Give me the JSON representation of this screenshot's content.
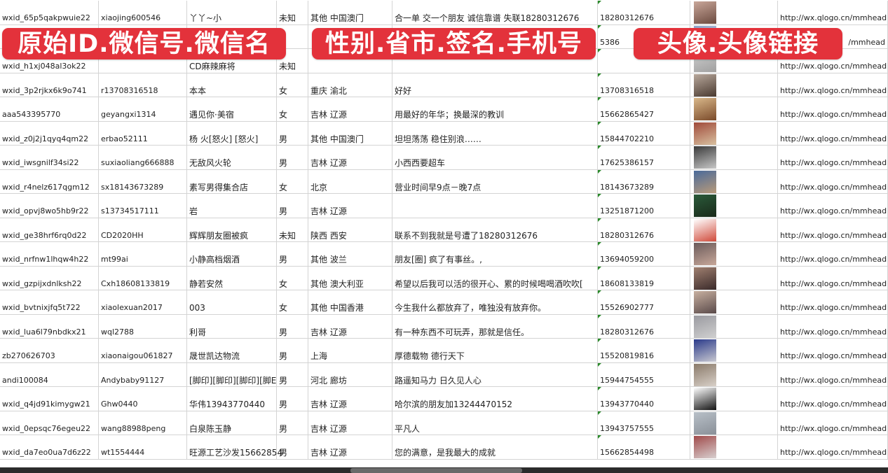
{
  "overlays": [
    "原始ID.微信号.微信名",
    "性别.省市.签名.手机号",
    "头像.头像链接"
  ],
  "colors": {
    "overlay": "#e3323b",
    "gridline": "#d4d4d4",
    "comment_marker": "#2a8a2a"
  },
  "rows": [
    [
      "wxid_65p5qakpwuie22",
      "xiaojing600546",
      "丫丫~小",
      "未知",
      "其他 中国澳门",
      "合一单 交一个朋友 诚信靠谱 失联18280312676",
      "18280312676",
      "http://wx.qlogo.cn/mmhead"
    ],
    [
      "",
      "",
      "",
      "",
      "",
      "",
      "5386",
      "/mmhead"
    ],
    [
      "wxid_h1xj048al3ok22",
      "",
      "CD麻辣麻将",
      "未知",
      "",
      "",
      "",
      "http://wx.qlogo.cn/mmhead"
    ],
    [
      "wxid_3p2rjkx6k9o741",
      "r13708316518",
      "本本",
      "女",
      "重庆 渝北",
      "好好",
      "13708316518",
      "http://wx.qlogo.cn/mmhead"
    ],
    [
      "aaa543395770",
      "geyangxi1314",
      "遇见你·美宿",
      "女",
      "吉林 辽源",
      "用最好的年华；换最深的教训",
      "15662865427",
      "http://wx.qlogo.cn/mmhead"
    ],
    [
      "wxid_z0j2j1qyq4qm22",
      "erbao52111",
      "杨 火[怒火] [怒火]",
      "男",
      "其他 中国澳门",
      "坦坦荡荡 稳住别浪……",
      "15844702210",
      "http://wx.qlogo.cn/mmhead"
    ],
    [
      "wxid_iwsgnilf34si22",
      "suxiaoliang666888",
      "无敌风火轮",
      "男",
      "吉林 辽源",
      "小西西要超车",
      "17625386157",
      "http://wx.qlogo.cn/mmhead"
    ],
    [
      "wxid_r4nelz617qgm12",
      "sx18143673289",
      "素写男得集合店",
      "女",
      "北京",
      "营业时间早9点－晚7点",
      "18143673289",
      "http://wx.qlogo.cn/mmhead"
    ],
    [
      "wxid_opvj8wo5hb9r22",
      "s13734517111",
      "岩",
      "男",
      "吉林 辽源",
      "",
      "13251871200",
      "http://wx.qlogo.cn/mmhead"
    ],
    [
      "wxid_ge38hrf6rq0d22",
      "CD2020HH",
      "辉辉朋友圈被疯",
      "未知",
      "陕西 西安",
      "联系不到我就是号遭了18280312676",
      "18280312676",
      "http://wx.qlogo.cn/mmhead"
    ],
    [
      "wxid_nrfnw1lhqw4h22",
      "mt99ai",
      "小静高档烟酒",
      "男",
      "其他 波兰",
      "朋友[圈] 疯了有事丝。,",
      "13694059200",
      "http://wx.qlogo.cn/mmhead"
    ],
    [
      "wxid_gzpijxdnlksh22",
      "Cxh18608133819",
      "静若安然",
      "女",
      "其他 澳大利亚",
      "希望以后我可以活的很开心、累的时候喝喝酒吹吹[",
      "18608133819",
      "http://wx.qlogo.cn/mmhead"
    ],
    [
      "wxid_bvtnixjfq5t722",
      "xiaolexuan2017",
      "003",
      "女",
      "其他 中国香港",
      "今生我什么都放弃了，唯独没有放弃你。",
      "15526902777",
      "http://wx.qlogo.cn/mmhead"
    ],
    [
      "wxid_lua6l79nbdkx21",
      "wql2788",
      "利哥",
      "男",
      "吉林 辽源",
      "有一种东西不可玩弄，那就是信任。",
      "18280312676",
      "http://wx.qlogo.cn/mmhead"
    ],
    [
      "zb270626703",
      "xiaonaigou061827",
      "晟世凯达物流",
      "男",
      "上海",
      "厚德载物 德行天下",
      "15520819816",
      "http://wx.qlogo.cn/mmhead"
    ],
    [
      "andi100084",
      "Andybaby91127",
      "[脚印][脚印][脚印][脚E",
      "男",
      "河北 廊坊",
      "路遥知马力 日久见人心",
      "15944754555",
      "http://wx.qlogo.cn/mmhead"
    ],
    [
      "wxid_q4jd91kimygw21",
      "Ghw0440",
      "华伟13943770440",
      "男",
      "吉林 辽源",
      "哈尔滨的朋友加13244470152",
      "13943770440",
      "http://wx.qlogo.cn/mmhead"
    ],
    [
      "wxid_0epsqc76egeu22",
      "wang88988peng",
      "白泉陈玉静",
      "男",
      "吉林 辽源",
      "平凡人",
      "13943757555",
      "http://wx.qlogo.cn/mmhead"
    ],
    [
      "wxid_da7eo0ua7d6z22",
      "wt1554444",
      "旺源工艺沙发15662854",
      "男",
      "吉林 辽源",
      "您的满意，是我最大的成就",
      "15662854498",
      "http://wx.qlogo.cn/mmhead"
    ]
  ],
  "avatar_icons": [
    "photo-icon"
  ]
}
